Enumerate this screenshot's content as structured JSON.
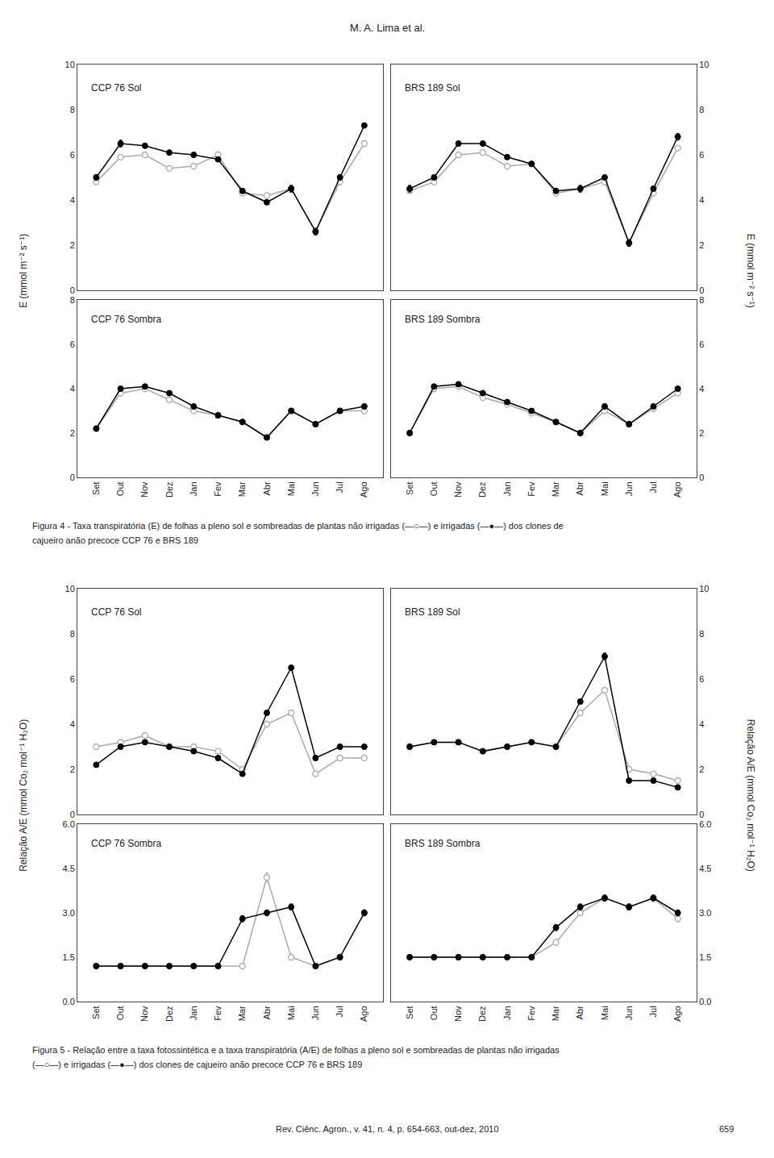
{
  "chart_data": [
    {
      "type": "line",
      "title": "CCP 76 Sol",
      "ylabel": "E (mmol m⁻² s⁻¹)",
      "categories": [
        "Set",
        "Out",
        "Nov",
        "Dez",
        "Jan",
        "Fev",
        "Mar",
        "Abr",
        "Mai",
        "Jun",
        "Jul",
        "Ago"
      ],
      "series": [
        {
          "color": "#aaaaaa",
          "marker": "open circle",
          "values": [
            4.8,
            5.9,
            6.0,
            5.4,
            5.5,
            6.0,
            4.3,
            4.2,
            4.5,
            2.6,
            4.8,
            6.5
          ],
          "errors": [
            0.1,
            0.1,
            0.1,
            0.1,
            0.1,
            0.1,
            0.1,
            0.1,
            0.12,
            0.1,
            0.1,
            0.1
          ]
        },
        {
          "color": "#000000",
          "marker": "filled circle",
          "values": [
            5.0,
            6.5,
            6.4,
            6.1,
            6.0,
            5.8,
            4.4,
            3.9,
            4.5,
            2.6,
            5.0,
            7.3
          ],
          "errors": [
            0.12,
            0.15,
            0.1,
            0.1,
            0.1,
            0.1,
            0.1,
            0.1,
            0.15,
            0.15,
            0.12,
            0.1
          ]
        }
      ],
      "ylim": [
        0,
        10
      ],
      "yticks": [
        0,
        2,
        4,
        6,
        8,
        10
      ],
      "grid": false,
      "tick_labels": "y",
      "annotations": [
        "M. A. Lima et al."
      ]
    },
    {
      "type": "line",
      "title": "BRS 189 Sol",
      "ylabel": "E (mmol m⁻² s⁻¹)",
      "categories": [
        "Set",
        "Out",
        "Nov",
        "Dez",
        "Jan",
        "Fev",
        "Mar",
        "Abr",
        "Mai",
        "Jun",
        "Jul",
        "Ago"
      ],
      "series": [
        {
          "color": "#aaaaaa",
          "marker": "open circle",
          "values": [
            4.4,
            4.8,
            6.0,
            6.1,
            5.5,
            5.6,
            4.3,
            4.5,
            4.8,
            2.1,
            4.3,
            6.3
          ],
          "errors": [
            0.1,
            0.1,
            0.1,
            0.1,
            0.1,
            0.1,
            0.1,
            0.1,
            0.1,
            0.1,
            0.1,
            0.1
          ]
        },
        {
          "color": "#000000",
          "marker": "filled circle",
          "values": [
            4.5,
            5.0,
            6.5,
            6.5,
            5.9,
            5.6,
            4.4,
            4.5,
            5.0,
            2.1,
            4.5,
            6.8
          ],
          "errors": [
            0.15,
            0.1,
            0.1,
            0.1,
            0.1,
            0.1,
            0.1,
            0.15,
            0.1,
            0.15,
            0.1,
            0.15
          ]
        }
      ],
      "ylim": [
        0,
        10
      ],
      "yticks": [
        0,
        2,
        4,
        6,
        8,
        10
      ],
      "grid": false,
      "tick_labels": "y"
    },
    {
      "type": "line",
      "title": "CCP 76 Sombra",
      "categories": [
        "Set",
        "Out",
        "Nov",
        "Dez",
        "Jan",
        "Fev",
        "Mar",
        "Abr",
        "Mai",
        "Jun",
        "Jul",
        "Ago"
      ],
      "series": [
        {
          "color": "#aaaaaa",
          "marker": "open circle",
          "values": [
            2.2,
            3.8,
            4.0,
            3.5,
            3.0,
            2.8,
            2.5,
            1.8,
            3.0,
            2.4,
            3.0,
            3.0
          ],
          "errors": [
            0.1,
            0.1,
            0.1,
            0.1,
            0.1,
            0.1,
            0.1,
            0.1,
            0.1,
            0.1,
            0.1,
            0.1
          ]
        },
        {
          "color": "#000000",
          "marker": "filled circle",
          "values": [
            2.2,
            4.0,
            4.1,
            3.8,
            3.2,
            2.8,
            2.5,
            1.8,
            3.0,
            2.4,
            3.0,
            3.2
          ],
          "errors": [
            0.1,
            0.1,
            0.1,
            0.1,
            0.1,
            0.1,
            0.1,
            0.1,
            0.1,
            0.1,
            0.1,
            0.1
          ]
        }
      ],
      "ylim": [
        0,
        8
      ],
      "yticks": [
        0,
        2,
        4,
        6,
        8
      ],
      "grid": false,
      "annotations": [
        "Figura 4 - Taxa transpiratória (E) de folhas a pleno sol e sombreadas de plantas não irrigadas (—○—) e irrigadas (—●—) dos clones de",
        "cajueiro anão precoce CCP 76 e BRS 189"
      ]
    },
    {
      "type": "line",
      "title": "BRS 189 Sombra",
      "categories": [
        "Set",
        "Out",
        "Nov",
        "Dez",
        "Jan",
        "Fev",
        "Mar",
        "Abr",
        "Mai",
        "Jun",
        "Jul",
        "Ago"
      ],
      "series": [
        {
          "color": "#aaaaaa",
          "marker": "open circle",
          "values": [
            2.0,
            4.0,
            4.1,
            3.6,
            3.3,
            2.9,
            2.5,
            2.0,
            3.0,
            2.4,
            3.1,
            3.8
          ],
          "errors": [
            0.1,
            0.1,
            0.1,
            0.1,
            0.1,
            0.1,
            0.1,
            0.1,
            0.1,
            0.1,
            0.1,
            0.1
          ]
        },
        {
          "color": "#000000",
          "marker": "filled circle",
          "values": [
            2.0,
            4.1,
            4.2,
            3.8,
            3.4,
            3.0,
            2.5,
            2.0,
            3.2,
            2.4,
            3.2,
            4.0
          ],
          "errors": [
            0.1,
            0.1,
            0.1,
            0.1,
            0.1,
            0.1,
            0.1,
            0.1,
            0.1,
            0.1,
            0.1,
            0.1
          ]
        }
      ],
      "ylim": [
        0,
        8
      ],
      "yticks": [
        0,
        2,
        4,
        6,
        8
      ],
      "grid": false
    },
    {
      "type": "line",
      "title": "CCP 76 Sol",
      "ylabel": "Relação A/E (mmol Co₂ mol⁻¹ H₂O)",
      "categories": [
        "Set",
        "Out",
        "Nov",
        "Dez",
        "Jan",
        "Fev",
        "Mar",
        "Abr",
        "Mai",
        "Jun",
        "Jul",
        "Ago"
      ],
      "series": [
        {
          "color": "#aaaaaa",
          "marker": "open circle",
          "values": [
            3.0,
            3.2,
            3.5,
            3.0,
            3.0,
            2.8,
            2.0,
            4.0,
            4.5,
            1.8,
            2.5,
            2.5
          ],
          "errors": [
            0.1,
            0.1,
            0.1,
            0.1,
            0.1,
            0.1,
            0.1,
            0.1,
            0.1,
            0.1,
            0.1,
            0.1
          ]
        },
        {
          "color": "#000000",
          "marker": "filled circle",
          "values": [
            2.2,
            3.0,
            3.2,
            3.0,
            2.8,
            2.5,
            1.8,
            4.5,
            6.5,
            2.5,
            3.0,
            3.0
          ],
          "errors": [
            0.1,
            0.1,
            0.1,
            0.1,
            0.1,
            0.1,
            0.1,
            0.1,
            0.1,
            0.1,
            0.1,
            0.1
          ]
        }
      ],
      "ylim": [
        0,
        10
      ],
      "yticks": [
        0,
        2,
        4,
        6,
        8,
        10
      ],
      "grid": false,
      "tick_labels": "y"
    },
    {
      "type": "line",
      "title": "BRS 189 Sol",
      "ylabel": "Relação A/E (mmol Co₂ mol⁻¹ H₂O)",
      "categories": [
        "Set",
        "Out",
        "Nov",
        "Dez",
        "Jan",
        "Fev",
        "Mar",
        "Abr",
        "Mai",
        "Jun",
        "Jul",
        "Ago"
      ],
      "series": [
        {
          "color": "#aaaaaa",
          "marker": "open circle",
          "values": [
            3.0,
            3.2,
            3.2,
            2.8,
            3.0,
            3.2,
            3.0,
            4.5,
            5.5,
            2.0,
            1.8,
            1.5
          ],
          "errors": [
            0.1,
            0.1,
            0.1,
            0.1,
            0.1,
            0.1,
            0.1,
            0.1,
            0.1,
            0.1,
            0.1,
            0.1
          ]
        },
        {
          "color": "#000000",
          "marker": "filled circle",
          "values": [
            3.0,
            3.2,
            3.2,
            2.8,
            3.0,
            3.2,
            3.0,
            5.0,
            7.0,
            1.5,
            1.5,
            1.2
          ],
          "errors": [
            0.1,
            0.1,
            0.1,
            0.1,
            0.1,
            0.1,
            0.1,
            0.1,
            0.15,
            0.1,
            0.1,
            0.1
          ]
        }
      ],
      "ylim": [
        0,
        10
      ],
      "yticks": [
        0,
        2,
        4,
        6,
        8,
        10
      ],
      "grid": false,
      "tick_labels": "y"
    },
    {
      "type": "line",
      "title": "CCP 76 Sombra",
      "categories": [
        "Set",
        "Out",
        "Nov",
        "Dez",
        "Jan",
        "Fev",
        "Mar",
        "Abr",
        "Mai",
        "Jun",
        "Jul",
        "Ago"
      ],
      "series": [
        {
          "color": "#aaaaaa",
          "marker": "open circle",
          "values": [
            1.2,
            1.2,
            1.2,
            1.2,
            1.2,
            1.2,
            1.2,
            4.2,
            1.5,
            1.2,
            1.5,
            3.0
          ],
          "errors": [
            0.05,
            0.05,
            0.05,
            0.05,
            0.05,
            0.05,
            0.05,
            0.15,
            0.05,
            0.05,
            0.05,
            0.1
          ]
        },
        {
          "color": "#000000",
          "marker": "filled circle",
          "values": [
            1.2,
            1.2,
            1.2,
            1.2,
            1.2,
            1.2,
            2.8,
            3.0,
            3.2,
            1.2,
            1.5,
            3.0
          ],
          "errors": [
            0.05,
            0.05,
            0.05,
            0.05,
            0.05,
            0.05,
            0.1,
            0.1,
            0.1,
            0.05,
            0.05,
            0.1
          ]
        }
      ],
      "ylim": [
        0,
        6
      ],
      "yticks": [
        {
          "value": 0,
          "label": "0.0"
        },
        1.5,
        {
          "value": 3,
          "label": "3.0"
        },
        4.5,
        {
          "value": 6,
          "label": "6.0"
        }
      ],
      "grid": false,
      "annotations": [
        "Figura 5 - Relação entre a taxa fotossintética e a taxa transpiratória (A/E) de folhas a pleno sol e sombreadas de plantas não irrigadas",
        "(—○—) e irrigadas (—●—) dos clones de cajueiro anão precoce CCP 76 e BRS 189"
      ]
    },
    {
      "type": "line",
      "title": "BRS 189 Sombra",
      "categories": [
        "Set",
        "Out",
        "Nov",
        "Dez",
        "Jan",
        "Fev",
        "Mar",
        "Abr",
        "Mai",
        "Jun",
        "Jul",
        "Ago"
      ],
      "series": [
        {
          "color": "#aaaaaa",
          "marker": "open circle",
          "values": [
            1.5,
            1.5,
            1.5,
            1.5,
            1.5,
            1.5,
            2.0,
            3.0,
            3.5,
            3.2,
            3.5,
            2.8
          ],
          "errors": [
            0.05,
            0.05,
            0.05,
            0.05,
            0.05,
            0.05,
            0.1,
            0.1,
            0.1,
            0.1,
            0.1,
            0.1
          ]
        },
        {
          "color": "#000000",
          "marker": "filled circle",
          "values": [
            1.5,
            1.5,
            1.5,
            1.5,
            1.5,
            1.5,
            2.5,
            3.2,
            3.5,
            3.2,
            3.5,
            3.0
          ],
          "errors": [
            0.05,
            0.05,
            0.05,
            0.05,
            0.05,
            0.05,
            0.1,
            0.1,
            0.1,
            0.1,
            0.1,
            0.1
          ]
        }
      ],
      "ylim": [
        0,
        6
      ],
      "yticks": [
        {
          "value": 0,
          "label": "0.0"
        },
        1.5,
        {
          "value": 3,
          "label": "3.0"
        },
        4.5,
        {
          "value": 6,
          "label": "6.0"
        }
      ],
      "grid": false,
      "annotations": [
        "Rev. Ciênc. Agron., v. 41, n. 4, p. 654-663, out-dez, 2010",
        "659"
      ]
    }
  ]
}
